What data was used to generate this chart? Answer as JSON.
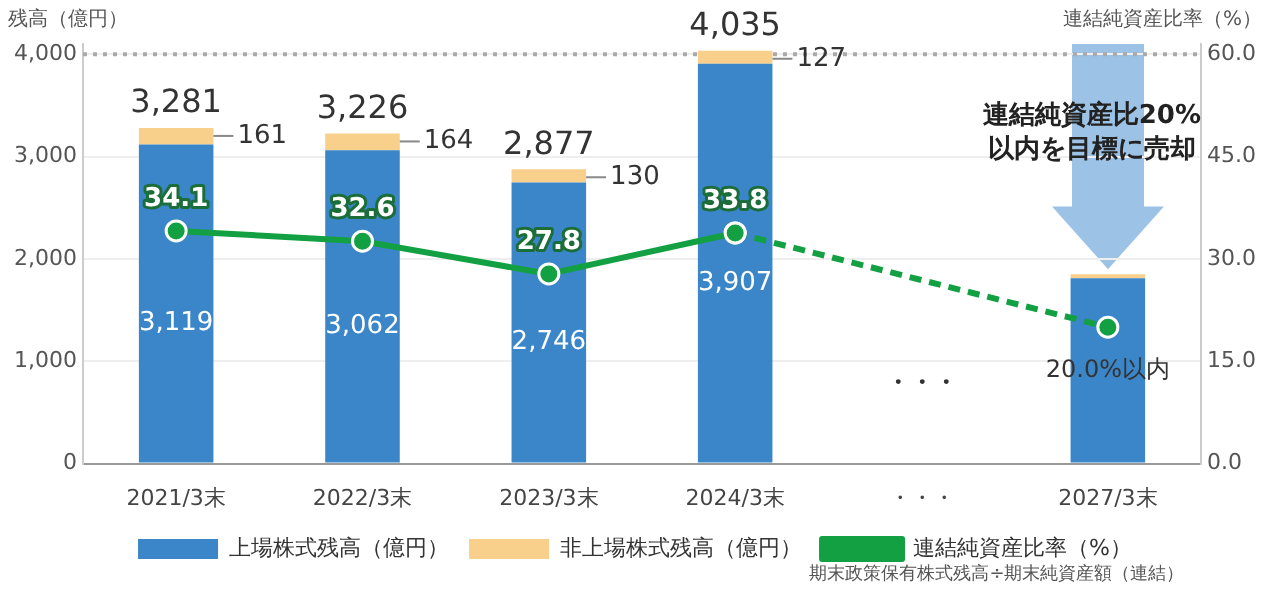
{
  "chart_data": {
    "type": "bar",
    "stacked": true,
    "categories": [
      "2021/3末",
      "2022/3末",
      "2023/3末",
      "2024/3末",
      "・・・",
      "2027/3末"
    ],
    "ylabel": "残高（億円）",
    "y2label": "連結純資産比率（%）",
    "series": [
      {
        "name": "上場株式残高（億円）",
        "color": "#3a86c8",
        "values": [
          3119,
          3062,
          2746,
          3907,
          null,
          1810
        ],
        "value_labels": [
          "3,119",
          "3,062",
          "2,746",
          "3,907",
          null,
          null
        ]
      },
      {
        "name": "非上場株式残高（億円）",
        "color": "#f9cf8c",
        "values": [
          161,
          164,
          130,
          127,
          null,
          40
        ],
        "value_labels": [
          "161",
          "164",
          "130",
          "127",
          null,
          null
        ]
      },
      {
        "name": "連結純資産比率（%）",
        "type": "line",
        "axis": "y2",
        "color": "#13a043",
        "marker": "circle",
        "line_style": "solid",
        "values": [
          34.1,
          32.6,
          27.8,
          33.8,
          null,
          null
        ],
        "value_labels": [
          "34.1",
          "32.6",
          "27.8",
          "33.8",
          null,
          null
        ]
      },
      {
        "type": "line",
        "axis": "y2",
        "color": "#13a043",
        "marker": "circle",
        "line_style": "dashed",
        "values": [
          null,
          null,
          null,
          33.8,
          null,
          20
        ],
        "value_labels": [
          null,
          null,
          null,
          null,
          null,
          "20.0%以内"
        ]
      }
    ],
    "totals": [
      "3,281",
      "3,226",
      "2,877",
      "4,035",
      null,
      null
    ],
    "ylim": [
      0,
      4100
    ],
    "yticks": [
      0,
      {
        "value": 1000,
        "label": "1,000"
      },
      {
        "value": 2000,
        "label": "2,000"
      },
      {
        "value": 3000,
        "label": "3,000"
      },
      {
        "value": 4000,
        "label": "4,000"
      }
    ],
    "y2lim": [
      0,
      61.5
    ],
    "y2ticks": [
      {
        "value": 0,
        "label": "0.0"
      },
      {
        "value": 15,
        "label": "15.0"
      },
      {
        "value": 30,
        "label": "30.0"
      },
      {
        "value": 45,
        "label": "45.0"
      },
      {
        "value": 60,
        "label": "60.0"
      }
    ],
    "ref_lines": [
      {
        "axis": "y2",
        "value": 60,
        "color": "#aaaaaa",
        "line_style": "dotted"
      }
    ],
    "annotations": [
      "連結純資産比20%\n以内を目標に売却",
      "期末政策保有株式残高÷期末純資産額（連結）",
      "・・・"
    ],
    "grid": "y",
    "legend": "bottom"
  }
}
